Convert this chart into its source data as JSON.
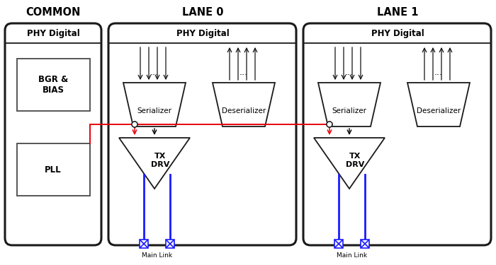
{
  "bg_color": "#ffffff",
  "common_title": "COMMON",
  "lane0_title": "LANE 0",
  "lane1_title": "LANE 1",
  "phy_digital": "PHY Digital",
  "bgr_bias": "BGR &\nBIAS",
  "pll": "PLL",
  "serializer": "Serializer",
  "deserializer": "Deserializer",
  "tx_drv": "TX\nDRV",
  "main_link": "Main Link",
  "dots": "...",
  "ec_main": "#1a1a1a",
  "ec_inner": "#555555",
  "fc_white": "#ffffff",
  "fc_light": "#f2f2f2",
  "fc_trap": "#e8e8e8",
  "red": "#e8000a",
  "blue": "#1a1aff",
  "lw_outer": 2.2,
  "lw_inner": 1.4
}
